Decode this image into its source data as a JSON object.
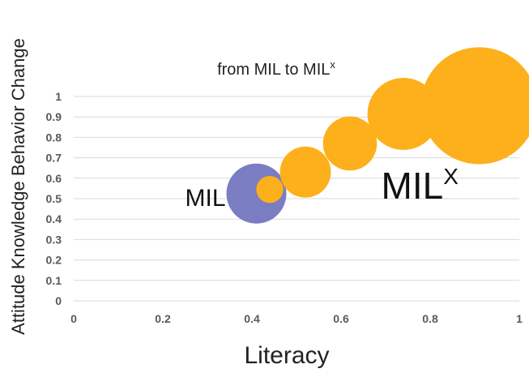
{
  "chart_data": {
    "type": "scatter",
    "subtype": "bubble",
    "title": "from MIL to MIL",
    "title_superscript": "x",
    "xlabel": "Literacy",
    "ylabel": "Attitude Knowledge Behavior Change",
    "xlim": [
      0,
      1
    ],
    "ylim": [
      0,
      1
    ],
    "x_ticks": [
      "0",
      "0.2",
      "0.4",
      "0.6",
      "0.8",
      "1"
    ],
    "y_ticks": [
      "0",
      "0.1",
      "0.2",
      "0.3",
      "0.4",
      "0.5",
      "0.6",
      "0.7",
      "0.8",
      "0.9",
      "1"
    ],
    "grid": "horizontal",
    "legend": "none",
    "series": [
      {
        "color": "#7b7dc3",
        "points": [
          {
            "x": 0.41,
            "y": 0.525,
            "size": 1.0
          }
        ]
      },
      {
        "color": "#fdb01b",
        "points": [
          {
            "x": 0.44,
            "y": 0.545,
            "size": 0.45
          },
          {
            "x": 0.52,
            "y": 0.63,
            "size": 0.85
          },
          {
            "x": 0.62,
            "y": 0.77,
            "size": 0.9
          },
          {
            "x": 0.74,
            "y": 0.915,
            "size": 1.2
          },
          {
            "x": 0.91,
            "y": 0.955,
            "size": 1.95
          }
        ]
      }
    ],
    "annotations": [
      {
        "text": "MIL",
        "superscript": "",
        "x": 0.25,
        "y": 0.465
      },
      {
        "text": "MIL",
        "superscript": "X",
        "x": 0.69,
        "y": 0.5
      }
    ]
  }
}
